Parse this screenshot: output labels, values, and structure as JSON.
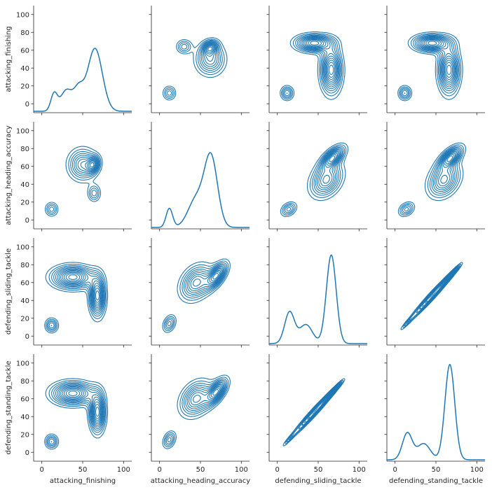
{
  "chart_data": {
    "type": "pairplot",
    "kind": "kde",
    "variables": [
      "attacking_finishing",
      "attacking_heading_accuracy",
      "defending_sliding_tackle",
      "defending_standing_tackle"
    ],
    "color": "#1f77b4",
    "axis_range": [
      -10,
      110
    ],
    "ticks": [
      0,
      20,
      40,
      60,
      80,
      100
    ],
    "x_ticks": [
      0,
      50,
      100
    ],
    "tick_labels_y": [
      "0",
      "20",
      "40",
      "60",
      "80",
      "100"
    ],
    "tick_labels_x": [
      "0",
      "50",
      "100"
    ],
    "diagonal": [
      {
        "variable": "attacking_finishing",
        "peaks": [
          {
            "center": 15,
            "width": 4,
            "height": 0.18
          },
          {
            "center": 30,
            "width": 7,
            "height": 0.22
          },
          {
            "center": 45,
            "width": 6,
            "height": 0.22
          },
          {
            "center": 65,
            "width": 9,
            "height": 0.66
          }
        ]
      },
      {
        "variable": "attacking_heading_accuracy",
        "peaks": [
          {
            "center": 12,
            "width": 4,
            "height": 0.2
          },
          {
            "center": 45,
            "width": 10,
            "height": 0.3
          },
          {
            "center": 63,
            "width": 8,
            "height": 0.72
          }
        ]
      },
      {
        "variable": "defending_sliding_tackle",
        "peaks": [
          {
            "center": 15,
            "width": 6,
            "height": 0.33
          },
          {
            "center": 35,
            "width": 8,
            "height": 0.2
          },
          {
            "center": 66,
            "width": 6,
            "height": 0.93
          }
        ]
      },
      {
        "variable": "defending_standing_tackle",
        "peaks": [
          {
            "center": 15,
            "width": 6,
            "height": 0.28
          },
          {
            "center": 35,
            "width": 8,
            "height": 0.17
          },
          {
            "center": 67,
            "width": 6,
            "height": 1.0
          }
        ]
      }
    ],
    "offdiagonal_clusters": {
      "finishing_vs_heading": [
        {
          "x": 12,
          "y": 12,
          "sx": 5,
          "sy": 5,
          "rho": 0.0,
          "w": 0.3
        },
        {
          "x": 50,
          "y": 62,
          "sx": 11,
          "sy": 11,
          "rho": 0.0,
          "w": 0.5
        },
        {
          "x": 63,
          "y": 62,
          "sx": 5,
          "sy": 6,
          "rho": 0.2,
          "w": 0.5
        },
        {
          "x": 64,
          "y": 30,
          "sx": 5,
          "sy": 6,
          "rho": 0.0,
          "w": 0.3
        }
      ],
      "finishing_vs_defense": [
        {
          "x": 12,
          "y": 12,
          "sx": 5,
          "sy": 5,
          "rho": 0.0,
          "w": 0.3
        },
        {
          "x": 38,
          "y": 66,
          "sx": 16,
          "sy": 8,
          "rho": 0.0,
          "w": 0.6
        },
        {
          "x": 68,
          "y": 45,
          "sx": 6,
          "sy": 14,
          "rho": 0.0,
          "w": 0.6
        }
      ],
      "heading_vs_defense": [
        {
          "x": 12,
          "y": 14,
          "sx": 5,
          "sy": 6,
          "rho": 0.3,
          "w": 0.3
        },
        {
          "x": 45,
          "y": 60,
          "sx": 12,
          "sy": 12,
          "rho": 0.3,
          "w": 0.5
        },
        {
          "x": 70,
          "y": 68,
          "sx": 8,
          "sy": 9,
          "rho": 0.6,
          "w": 0.6
        }
      ],
      "defense_vs_defense": [
        {
          "x": 15,
          "y": 15,
          "sx": 5,
          "sy": 5,
          "rho": 0.95,
          "w": 0.3
        },
        {
          "x": 45,
          "y": 45,
          "sx": 16,
          "sy": 16,
          "rho": 0.98,
          "w": 0.7
        },
        {
          "x": 68,
          "y": 68,
          "sx": 7,
          "sy": 7,
          "rho": 0.97,
          "w": 0.8
        }
      ]
    }
  }
}
